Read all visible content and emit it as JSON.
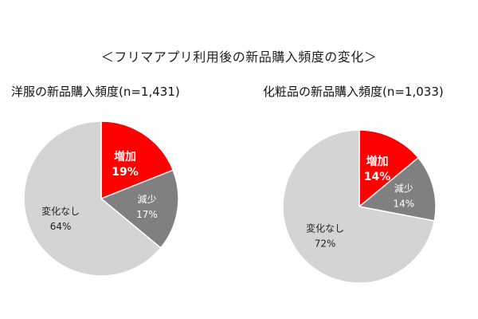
{
  "main_title": "＜フリマアプリ利用後の新品購入頻度の変化＞",
  "colors": {
    "increase": "#ff0000",
    "decrease": "#808080",
    "nochange": "#d4d4d4",
    "stroke": "#ffffff"
  },
  "chart_data": [
    {
      "type": "pie",
      "title": "洋服の新品購入頻度(n=1,431)",
      "slices": [
        {
          "label": "増加",
          "value": 19,
          "text": "19%",
          "color": "#ff0000"
        },
        {
          "label": "減少",
          "value": 17,
          "text": "17%",
          "color": "#808080"
        },
        {
          "label": "変化なし",
          "value": 64,
          "text": "64%",
          "color": "#d4d4d4"
        }
      ]
    },
    {
      "type": "pie",
      "title": "化粧品の新品購入頻度(n=1,033)",
      "slices": [
        {
          "label": "増加",
          "value": 14,
          "text": "14%",
          "color": "#ff0000"
        },
        {
          "label": "減少",
          "value": 14,
          "text": "14%",
          "color": "#808080"
        },
        {
          "label": "変化なし",
          "value": 72,
          "text": "72%",
          "color": "#d4d4d4"
        }
      ]
    }
  ]
}
